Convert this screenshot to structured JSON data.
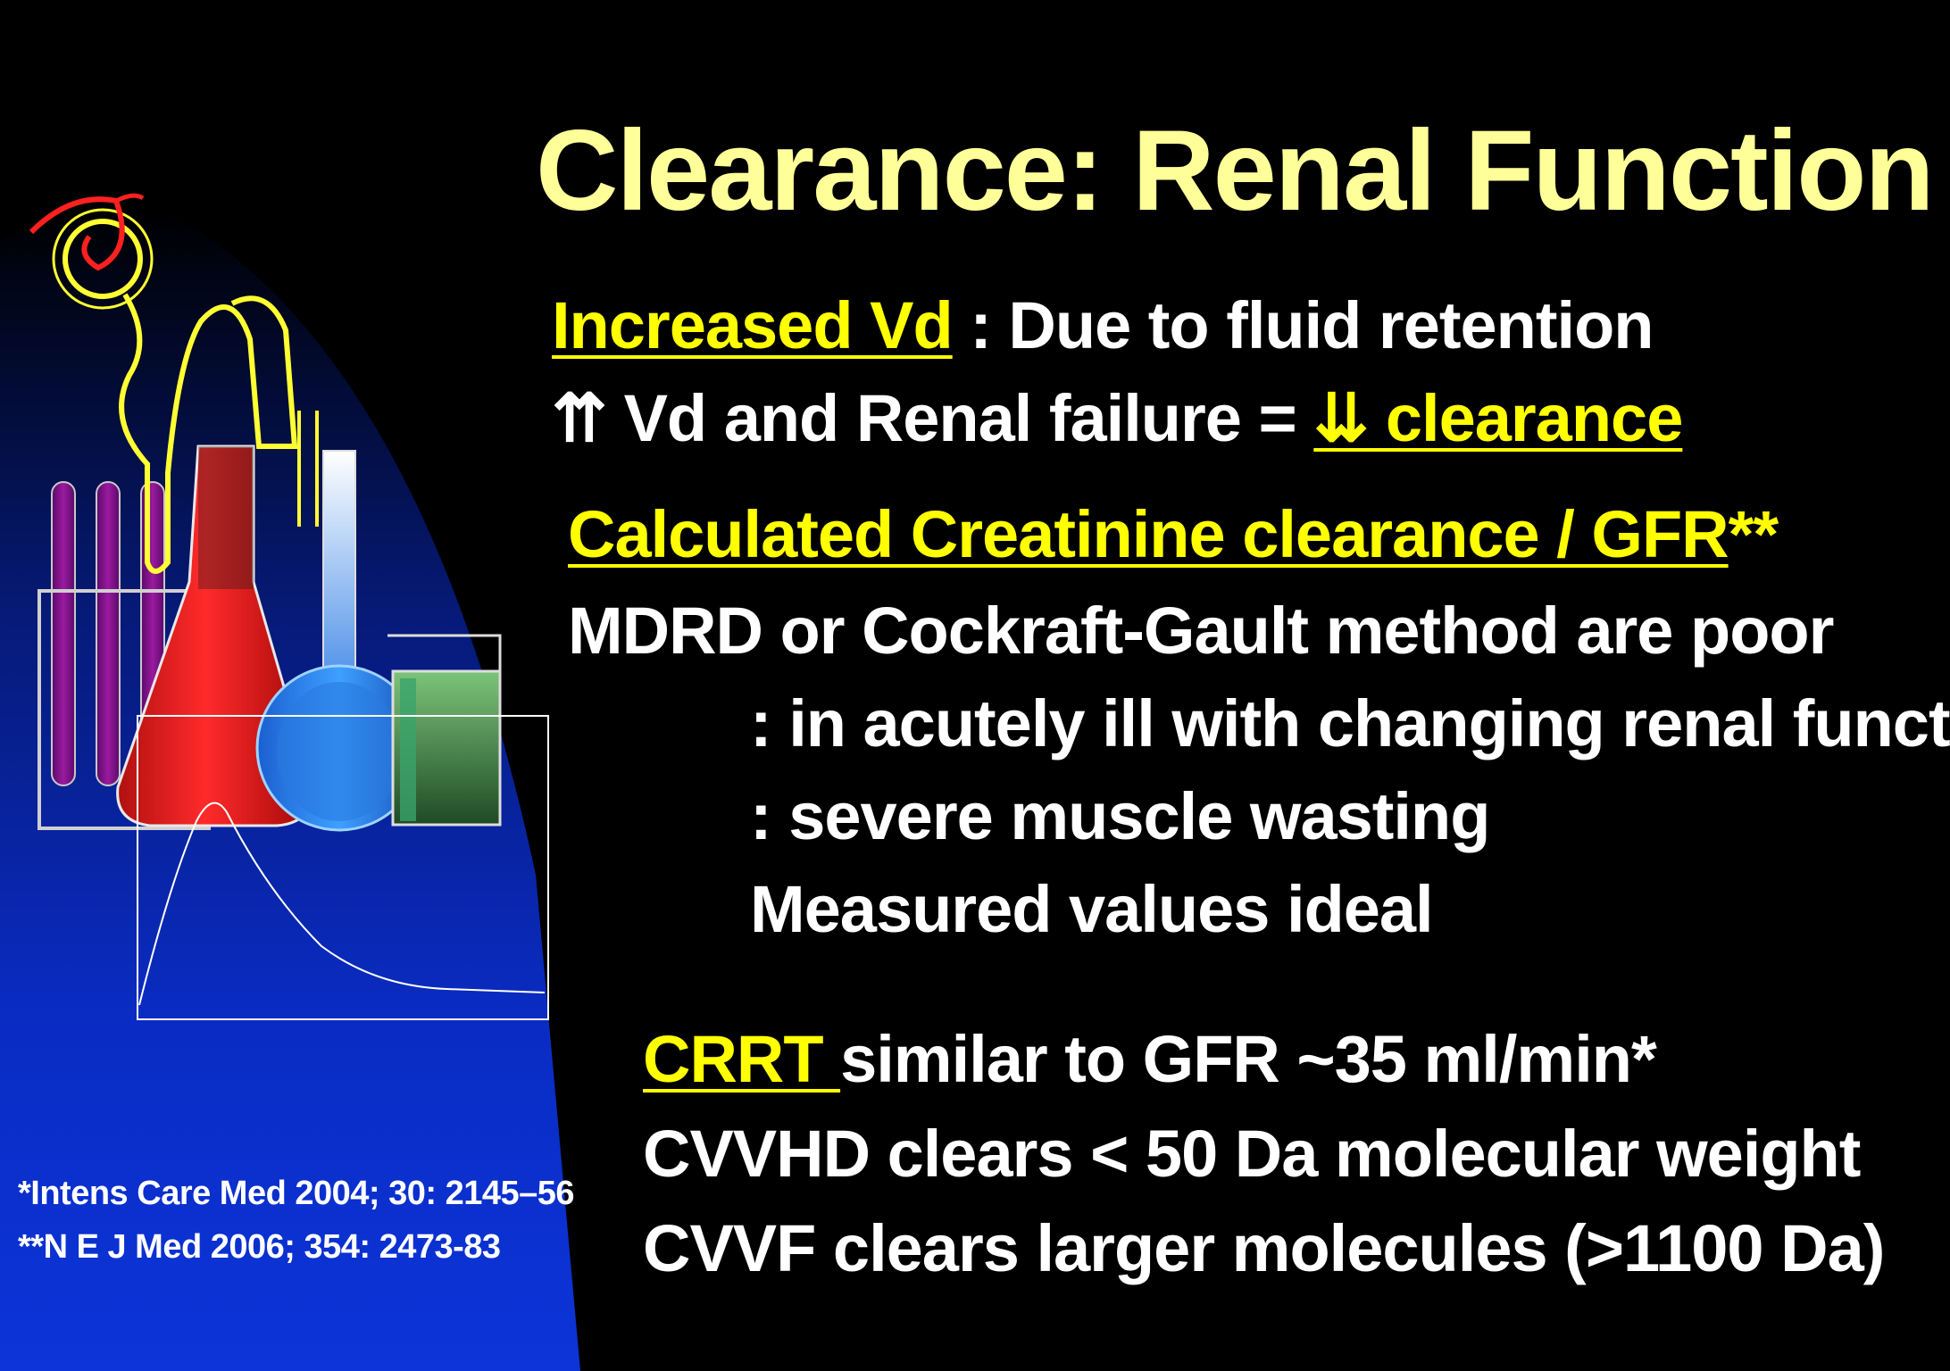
{
  "colors": {
    "background": "#000000",
    "title": "#FFFF99",
    "accent": "#FFFF00",
    "text": "#FFFFFF",
    "panel_blue": "#0B2BC8"
  },
  "title": "Clearance: Renal Function",
  "section1": {
    "line1_highlight": "Increased Vd",
    "line1_rest": " : Due to fluid retention",
    "line2_arrows_up": "⇈",
    "line2_rest": " Vd and Renal failure = ",
    "line2_highlight": "⇊ clearance"
  },
  "section2": {
    "heading": "Calculated Creatinine clearance / GFR",
    "heading_suffix": "**",
    "line1": "MDRD or Cockraft-Gault method are poor",
    "line2": ": in acutely ill with changing renal funct",
    "line3": ": severe muscle wasting",
    "line4": "Measured values ideal"
  },
  "section3": {
    "line1_highlight": "CRRT ",
    "line1_rest": "similar to GFR ~35 ml/min*",
    "line2": "CVVHD clears < 50 Da molecular weight",
    "line3": "CVVF clears larger molecules (>1100 Da)"
  },
  "references": {
    "ref1": "*Intens Care Med 2004; 30: 2145–56",
    "ref2": "**N E J Med 2006; 354: 2473-83"
  },
  "illustration": {
    "icons": [
      "kidney-nephron-icon",
      "test-tubes-icon",
      "erlenmeyer-flask-icon",
      "round-flask-icon",
      "beaker-icon",
      "concentration-curve-icon"
    ]
  }
}
